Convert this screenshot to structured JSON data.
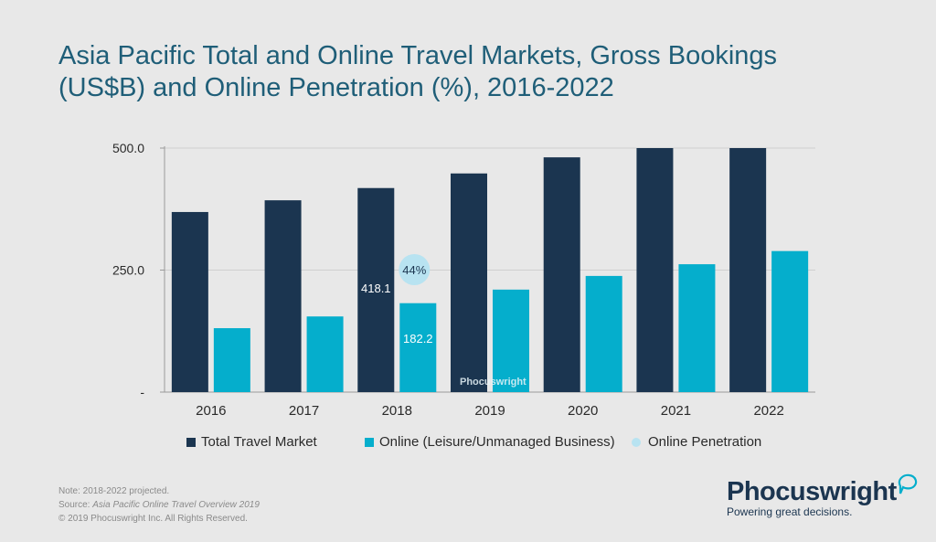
{
  "title": {
    "line1": "Asia Pacific Total and Online Travel Markets, Gross Bookings",
    "line2": "(US$B) and Online Penetration (%), 2016-2022"
  },
  "colors": {
    "total": "#1b3550",
    "online": "#05aecc",
    "penetration": "#b8e3f1",
    "axis": "#9a9a9a",
    "grid": "#cfcfcf"
  },
  "chart_data": {
    "type": "bar",
    "title": "Asia Pacific Total and Online Travel Markets, Gross Bookings (US$B) and Online Penetration (%), 2016-2022",
    "categories": [
      "2016",
      "2017",
      "2018",
      "2019",
      "2020",
      "2021",
      "2022"
    ],
    "series": [
      {
        "name": "Total Travel Market",
        "values": [
          369,
          393,
          418.1,
          448,
          481,
          500,
          500
        ]
      },
      {
        "name": "Online (Leisure/Unmanaged Business)",
        "values": [
          131,
          155,
          182.2,
          210,
          238,
          262,
          289
        ]
      },
      {
        "name": "Online Penetration",
        "values": [
          null,
          null,
          44,
          null,
          null,
          null,
          null
        ]
      }
    ],
    "data_labels": [
      {
        "series": "Total Travel Market",
        "category": "2018",
        "text": "418.1"
      },
      {
        "series": "Online (Leisure/Unmanaged Business)",
        "category": "2018",
        "text": "182.2"
      },
      {
        "series": "Online Penetration",
        "category": "2018",
        "text": "44%"
      }
    ],
    "y_ticks": [
      {
        "value": 500,
        "label": "500.0"
      },
      {
        "value": 250,
        "label": "250.0"
      },
      {
        "value": 0,
        "label": "-"
      }
    ],
    "ylim": [
      0,
      500
    ],
    "xlabel": "",
    "ylabel": "",
    "legend_position": "bottom",
    "watermark": "Phocuswright"
  },
  "legend": {
    "total_label": "Total Travel Market",
    "online_label": "Online (Leisure/Unmanaged Business)",
    "penetration_label": "Online Penetration"
  },
  "footer": {
    "note": "Note: 2018-2022 projected.",
    "source_prefix": "Source: ",
    "source_title": "Asia Pacific Online Travel Overview 2019",
    "copyright": "© 2019 Phocuswright Inc. All Rights Reserved."
  },
  "logo": {
    "name": "Phocuswright",
    "tagline": "Powering great decisions."
  }
}
